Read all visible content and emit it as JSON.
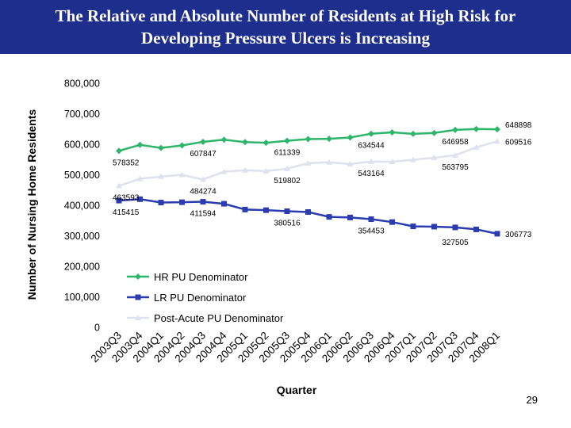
{
  "title": {
    "line1": "The Relative and Absolute Number of Residents at High Risk for",
    "line2": "Developing Pressure Ulcers is Increasing"
  },
  "page_number": "29",
  "colors": {
    "title_bg": "#1e2e8c",
    "hr": "#2db56a",
    "lr": "#2a3cb0",
    "post": "#dfe1ee"
  },
  "chart_data": {
    "type": "line",
    "title": "",
    "xlabel": "Quarter",
    "ylabel": "Number of Nursing Home Residents",
    "ylim": [
      0,
      800000
    ],
    "y_ticks": [
      0,
      100000,
      200000,
      300000,
      400000,
      500000,
      600000,
      700000,
      800000
    ],
    "y_tick_labels": [
      "0",
      "100,000",
      "200,000",
      "300,000",
      "400,000",
      "500,000",
      "600,000",
      "700,000",
      "800,000"
    ],
    "categories": [
      "2003Q3",
      "2003Q4",
      "2004Q1",
      "2004Q2",
      "2004Q3",
      "2004Q4",
      "2005Q1",
      "2005Q2",
      "2005Q3",
      "2005Q4",
      "2006Q1",
      "2006Q2",
      "2006Q3",
      "2006Q4",
      "2007Q1",
      "2007Q2",
      "2007Q3",
      "2007Q4",
      "2008Q1"
    ],
    "series": [
      {
        "name": "HR PU Denominator",
        "color": "#2db56a",
        "marker": "diamond",
        "values": [
          578352,
          598000,
          588000,
          596000,
          607847,
          615000,
          607000,
          605000,
          611339,
          617000,
          618000,
          622000,
          634544,
          639000,
          634000,
          637000,
          646958,
          650000,
          648898
        ]
      },
      {
        "name": "LR PU Denominator",
        "color": "#2a3cb0",
        "marker": "square",
        "values": [
          415415,
          420000,
          409000,
          410000,
          411594,
          405000,
          386000,
          384000,
          380516,
          378000,
          362000,
          360000,
          354453,
          345000,
          331000,
          330000,
          327505,
          321000,
          306773
        ]
      },
      {
        "name": "Post-Acute PU Denominator",
        "color": "#dfe1ee",
        "marker": "triangle",
        "values": [
          463593,
          487000,
          494000,
          500000,
          484274,
          510000,
          515000,
          512000,
          519802,
          538000,
          541000,
          535000,
          543164,
          543000,
          549000,
          556000,
          563795,
          590000,
          609516
        ]
      }
    ],
    "data_labels": [
      {
        "text": "578352",
        "series": 0,
        "index": 0,
        "pos": "below"
      },
      {
        "text": "607847",
        "series": 0,
        "index": 4,
        "pos": "below"
      },
      {
        "text": "611339",
        "series": 0,
        "index": 8,
        "pos": "below"
      },
      {
        "text": "634544",
        "series": 0,
        "index": 12,
        "pos": "below"
      },
      {
        "text": "646958",
        "series": 0,
        "index": 16,
        "pos": "below"
      },
      {
        "text": "648898",
        "series": 0,
        "index": 18,
        "pos": "right-above"
      },
      {
        "text": "609516",
        "series": 2,
        "index": 18,
        "pos": "right"
      },
      {
        "text": "463593",
        "series": 2,
        "index": 0,
        "pos": "below"
      },
      {
        "text": "484274",
        "series": 2,
        "index": 4,
        "pos": "below"
      },
      {
        "text": "519802",
        "series": 2,
        "index": 8,
        "pos": "below"
      },
      {
        "text": "543164",
        "series": 2,
        "index": 12,
        "pos": "below"
      },
      {
        "text": "563795",
        "series": 2,
        "index": 16,
        "pos": "below"
      },
      {
        "text": "415415",
        "series": 1,
        "index": 0,
        "pos": "below"
      },
      {
        "text": "411594",
        "series": 1,
        "index": 4,
        "pos": "below"
      },
      {
        "text": "380516",
        "series": 1,
        "index": 8,
        "pos": "below"
      },
      {
        "text": "354453",
        "series": 1,
        "index": 12,
        "pos": "below"
      },
      {
        "text": "327505",
        "series": 1,
        "index": 16,
        "pos": "below"
      },
      {
        "text": "306773",
        "series": 1,
        "index": 18,
        "pos": "right"
      }
    ],
    "legend": "inside-bottom-left",
    "grid": false
  }
}
